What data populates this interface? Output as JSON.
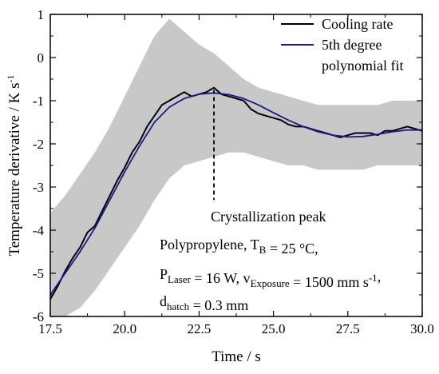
{
  "chart_data": {
    "type": "line",
    "title": "",
    "xlabel": "Time / s",
    "ylabel": "Temperature derivative / K s⁻¹",
    "xlim": [
      17.5,
      30.0
    ],
    "ylim": [
      -6,
      1
    ],
    "xticks": [
      "17.5",
      "20.0",
      "22.5",
      "25.0",
      "27.5",
      "30.0"
    ],
    "yticks": [
      "-6",
      "-5",
      "-4",
      "-3",
      "-2",
      "-1",
      "0",
      "1"
    ],
    "grid": false,
    "legend_position": "top-right",
    "series": [
      {
        "name": "Cooling rate",
        "color": "#000000",
        "x": [
          17.5,
          17.75,
          18.0,
          18.25,
          18.5,
          18.75,
          19.0,
          19.25,
          19.5,
          19.75,
          20.0,
          20.25,
          20.5,
          20.75,
          21.0,
          21.25,
          21.5,
          21.75,
          22.0,
          22.25,
          22.5,
          22.75,
          23.0,
          23.25,
          23.5,
          23.75,
          24.0,
          24.25,
          24.5,
          24.75,
          25.0,
          25.25,
          25.5,
          25.75,
          26.0,
          26.25,
          26.5,
          26.75,
          27.0,
          27.25,
          27.5,
          27.75,
          28.0,
          28.25,
          28.5,
          28.75,
          29.0,
          29.25,
          29.5,
          29.75,
          30.0
        ],
        "y": [
          -5.6,
          -5.3,
          -4.95,
          -4.65,
          -4.4,
          -4.05,
          -3.9,
          -3.55,
          -3.2,
          -2.85,
          -2.55,
          -2.2,
          -1.95,
          -1.6,
          -1.35,
          -1.1,
          -1.0,
          -0.9,
          -0.8,
          -0.9,
          -0.85,
          -0.8,
          -0.7,
          -0.85,
          -0.9,
          -0.95,
          -1.0,
          -1.2,
          -1.3,
          -1.35,
          -1.4,
          -1.45,
          -1.55,
          -1.6,
          -1.6,
          -1.65,
          -1.7,
          -1.75,
          -1.8,
          -1.85,
          -1.8,
          -1.75,
          -1.75,
          -1.75,
          -1.8,
          -1.7,
          -1.7,
          -1.65,
          -1.6,
          -1.65,
          -1.7
        ]
      },
      {
        "name": "5th degree polynomial fit",
        "color": "#1a1a8c",
        "x": [
          17.5,
          18.0,
          18.5,
          19.0,
          19.5,
          20.0,
          20.5,
          21.0,
          21.5,
          22.0,
          22.5,
          23.0,
          23.5,
          24.0,
          24.5,
          25.0,
          25.5,
          26.0,
          26.5,
          27.0,
          27.5,
          28.0,
          28.5,
          29.0,
          29.5,
          30.0
        ],
        "y": [
          -5.5,
          -5.0,
          -4.5,
          -3.95,
          -3.3,
          -2.65,
          -2.05,
          -1.5,
          -1.15,
          -0.95,
          -0.85,
          -0.82,
          -0.86,
          -0.95,
          -1.1,
          -1.28,
          -1.45,
          -1.6,
          -1.72,
          -1.8,
          -1.84,
          -1.83,
          -1.78,
          -1.72,
          -1.68,
          -1.68
        ]
      }
    ],
    "noise_band": {
      "color": "#c8c8c8",
      "x": [
        17.5,
        18.0,
        18.5,
        19.0,
        19.5,
        20.0,
        20.5,
        21.0,
        21.5,
        22.0,
        22.5,
        23.0,
        23.5,
        24.0,
        24.5,
        25.0,
        25.5,
        26.0,
        26.5,
        27.0,
        27.5,
        28.0,
        28.5,
        29.0,
        29.5,
        30.0
      ],
      "upper": [
        -3.6,
        -3.2,
        -2.7,
        -2.2,
        -1.6,
        -0.9,
        -0.2,
        0.5,
        0.9,
        0.6,
        0.3,
        0.1,
        -0.2,
        -0.5,
        -0.7,
        -0.8,
        -0.9,
        -1.0,
        -1.1,
        -1.1,
        -1.1,
        -1.1,
        -1.1,
        -1.0,
        -1.0,
        -1.0
      ],
      "lower": [
        -6.0,
        -6.0,
        -5.8,
        -5.4,
        -4.9,
        -4.4,
        -3.9,
        -3.3,
        -2.8,
        -2.5,
        -2.4,
        -2.3,
        -2.2,
        -2.2,
        -2.3,
        -2.4,
        -2.5,
        -2.5,
        -2.6,
        -2.6,
        -2.6,
        -2.6,
        -2.5,
        -2.5,
        -2.5,
        -2.5
      ]
    },
    "annotations": {
      "peak": {
        "label": "Crystallization peak",
        "x": 23.0,
        "y_from": -0.75,
        "y_to": -3.3
      },
      "conditions": [
        [
          {
            "t": "Polypropylene, T"
          },
          {
            "t": "B",
            "sub": true
          },
          {
            "t": " = 25 °C,"
          }
        ],
        [
          {
            "t": "P"
          },
          {
            "t": "Laser",
            "sub": true
          },
          {
            "t": " = 16 W, v"
          },
          {
            "t": "Exposure",
            "sub": true
          },
          {
            "t": " = 1500 mm s"
          },
          {
            "t": "-1",
            "sup": true
          },
          {
            "t": ","
          }
        ],
        [
          {
            "t": "d"
          },
          {
            "t": "hatch",
            "sub": true
          },
          {
            "t": " = 0.3 mm"
          }
        ]
      ]
    }
  },
  "legend": {
    "items": [
      {
        "lines": [
          "Cooling rate"
        ],
        "color": "#000000"
      },
      {
        "lines": [
          "5th degree",
          "polynomial fit"
        ],
        "color": "#1a1a8c"
      }
    ]
  }
}
